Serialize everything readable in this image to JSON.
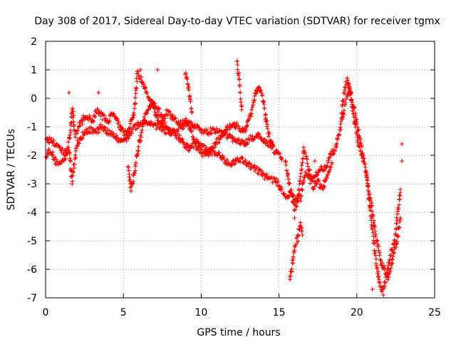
{
  "chart_data": {
    "type": "scatter",
    "title": "Day 308 of 2017, Sidereal Day-to-day VTEC variation (SDTVAR) for receiver tgmx",
    "xlabel": "GPS time / hours",
    "ylabel": "SDTVAR / TECUs",
    "xlim": [
      0,
      25
    ],
    "ylim": [
      -7,
      2
    ],
    "xticks": [
      "0",
      "5",
      "10",
      "15",
      "20",
      "25"
    ],
    "yticks": [
      "-7",
      "-6",
      "-5",
      "-4",
      "-3",
      "-2",
      "-1",
      "0",
      "1",
      "2"
    ],
    "grid": true,
    "marker": "+",
    "series": [
      {
        "name": "SDTVAR",
        "color": "#ff0000",
        "tracks": [
          {
            "x": [
              0.0,
              0.3,
              0.6,
              1.0,
              1.3,
              1.6,
              1.7,
              1.9,
              2.2,
              2.6,
              3.0,
              3.3,
              3.6,
              4.0,
              4.4,
              4.8,
              5.2,
              5.5,
              5.7,
              5.9,
              6.2,
              6.5,
              6.8,
              7.1,
              7.4,
              7.8,
              8.2,
              8.6,
              9.0,
              9.2,
              9.6,
              10.0,
              10.4,
              10.8,
              11.2,
              11.6,
              12.0,
              12.4,
              12.8,
              13.2,
              13.6,
              14.0,
              14.4,
              14.8,
              15.2,
              15.5,
              15.8,
              16.1,
              16.4,
              16.7,
              17.0,
              17.3,
              17.6,
              18.0,
              18.3,
              18.6,
              18.9,
              19.2,
              19.5,
              19.8,
              20.1,
              20.4,
              20.7,
              21.0,
              21.2,
              21.4,
              21.6,
              21.8,
              22.0,
              22.2,
              22.4,
              22.6,
              22.8
            ],
            "y": [
              -2.0,
              -1.8,
              -2.2,
              -2.3,
              -2.0,
              -1.2,
              -0.3,
              -1.3,
              -0.9,
              -0.6,
              -0.8,
              -0.4,
              -0.6,
              -0.8,
              -0.5,
              -1.0,
              -1.3,
              -0.8,
              -0.5,
              0.9,
              0.6,
              0.2,
              -0.1,
              -0.6,
              -0.9,
              -0.5,
              -0.7,
              -0.9,
              -0.8,
              -1.0,
              -1.5,
              -1.7,
              -1.8,
              -1.9,
              -2.0,
              -2.2,
              -2.3,
              -2.1,
              -2.2,
              -2.4,
              -2.5,
              -2.7,
              -2.8,
              -2.9,
              -3.2,
              -3.5,
              -3.3,
              -3.6,
              -3.4,
              -2.6,
              -2.9,
              -2.7,
              -2.5,
              -2.4,
              -2.0,
              -1.8,
              -1.2,
              -0.4,
              0.4,
              -0.3,
              -1.2,
              -2.0,
              -3.0,
              -4.0,
              -4.8,
              -5.3,
              -5.8,
              -6.0,
              -6.3,
              -5.9,
              -5.4,
              -5.0,
              -4.2
            ]
          },
          {
            "x": [
              0.0,
              0.4,
              0.8,
              1.2,
              1.5,
              1.7,
              2.0,
              2.4,
              2.8,
              3.2,
              3.6,
              4.0,
              4.4,
              4.8,
              5.2,
              5.6,
              6.0,
              6.4,
              6.8,
              7.2,
              7.6,
              8.0,
              8.4,
              8.8,
              9.2,
              9.6,
              10.0,
              10.4,
              10.8,
              11.2,
              11.6,
              12.0,
              12.4,
              12.8,
              13.2,
              13.6,
              14.0,
              14.4,
              14.8,
              15.2
            ],
            "y": [
              -1.4,
              -1.5,
              -1.7,
              -1.9,
              -1.8,
              -2.9,
              -1.6,
              -1.3,
              -1.1,
              -1.2,
              -1.0,
              -1.2,
              -1.3,
              -1.5,
              -1.4,
              -1.1,
              -0.9,
              -0.8,
              -0.9,
              -1.0,
              -1.1,
              -1.2,
              -1.1,
              -1.0,
              -0.9,
              -1.0,
              -1.1,
              -1.2,
              -1.1,
              -1.2,
              -1.3,
              -1.4,
              -1.5,
              -1.6,
              -1.4,
              -1.3,
              -1.5,
              -1.6,
              -1.9,
              -2.1
            ]
          },
          {
            "x": [
              5.3,
              5.5,
              5.7,
              6.0,
              6.4,
              6.8,
              7.2,
              7.6,
              8.0,
              8.4,
              8.8,
              9.2,
              9.6,
              10.0,
              10.4,
              10.8,
              11.2,
              11.6,
              12.0,
              12.4,
              12.8,
              13.2,
              13.5,
              13.7,
              13.9,
              14.1,
              14.3,
              14.6
            ],
            "y": [
              -2.4,
              -3.2,
              -2.6,
              -1.6,
              -0.6,
              -0.2,
              -0.3,
              -0.9,
              -1.1,
              -1.3,
              -1.5,
              -1.8,
              -1.6,
              -1.9,
              -2.0,
              -1.7,
              -1.4,
              -1.1,
              -0.9,
              -1.0,
              -1.2,
              -0.5,
              0.2,
              0.4,
              0.1,
              -0.5,
              -1.2,
              -1.6
            ]
          },
          {
            "x": [
              9.0,
              9.1,
              9.2,
              9.3,
              9.4
            ],
            "y": [
              0.9,
              0.6,
              0.3,
              -0.1,
              -0.5
            ]
          },
          {
            "x": [
              12.3,
              12.4,
              12.5,
              12.6
            ],
            "y": [
              1.3,
              0.9,
              0.3,
              -0.4
            ]
          },
          {
            "x": [
              15.7,
              15.8,
              15.9,
              16.0,
              16.1,
              16.2,
              16.3,
              16.4,
              16.5
            ],
            "y": [
              -6.4,
              -6.0,
              -5.6,
              -5.2,
              -5.0,
              -4.9,
              -4.6,
              -4.4,
              -4.8
            ]
          },
          {
            "x": [
              15.4,
              15.6,
              15.8,
              16.0,
              16.2,
              16.6,
              16.9,
              17.2,
              17.5,
              17.8,
              18.1,
              18.4
            ],
            "y": [
              -2.2,
              -2.8,
              -3.4,
              -3.9,
              -3.6,
              -1.8,
              -2.4,
              -3.1,
              -2.9,
              -3.2,
              -2.6,
              -2.3
            ]
          },
          {
            "x": [
              20.6,
              20.8,
              21.0,
              21.2,
              21.4,
              21.6,
              21.8,
              22.0,
              22.2,
              22.4,
              22.6,
              22.8
            ],
            "y": [
              -2.6,
              -3.6,
              -4.6,
              -5.6,
              -6.3,
              -6.8,
              -6.5,
              -6.0,
              -5.4,
              -5.1,
              -4.2,
              -3.3
            ]
          },
          {
            "x": [
              19.0,
              19.2,
              19.4,
              19.6,
              19.8,
              20.0,
              20.2,
              20.4
            ],
            "y": [
              -0.6,
              0.2,
              0.7,
              0.1,
              -0.6,
              -1.3,
              -1.8,
              -2.2
            ]
          }
        ],
        "points": [
          {
            "x": 1.5,
            "y": 0.2
          },
          {
            "x": 3.4,
            "y": 0.2
          },
          {
            "x": 6.1,
            "y": 1.0
          },
          {
            "x": 7.2,
            "y": 1.0
          },
          {
            "x": 16.0,
            "y": -4.2
          },
          {
            "x": 17.3,
            "y": -2.2
          },
          {
            "x": 21.0,
            "y": -6.7
          },
          {
            "x": 22.9,
            "y": -1.6
          },
          {
            "x": 22.9,
            "y": -2.2
          },
          {
            "x": 22.8,
            "y": -3.2
          },
          {
            "x": 21.7,
            "y": -6.9
          },
          {
            "x": 16.4,
            "y": -3.6
          }
        ]
      }
    ]
  }
}
